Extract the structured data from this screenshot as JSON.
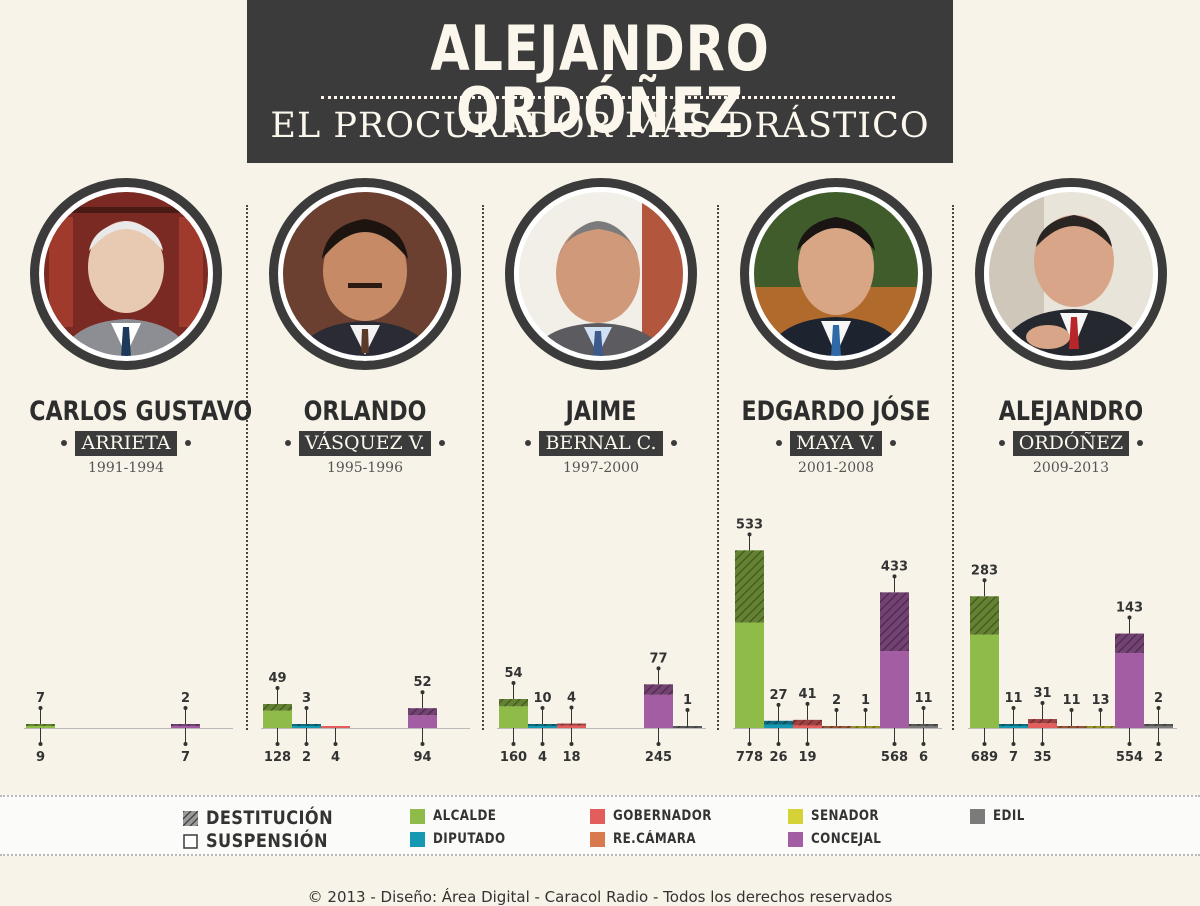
{
  "header": {
    "title": "ALEJANDRO ORDÓÑEZ",
    "subtitle": "EL PROCURADOR MÁS DRÁSTICO"
  },
  "people": [
    {
      "first": "CARLOS GUSTAVO",
      "last": "ARRIETA",
      "years": "1991-1994"
    },
    {
      "first": "ORLANDO",
      "last": "VÁSQUEZ V.",
      "years": "1995-1996"
    },
    {
      "first": "JAIME",
      "last": "BERNAL C.",
      "years": "1997-2000"
    },
    {
      "first": "EDGARDO JÓSE",
      "last": "MAYA V.",
      "years": "2001-2008"
    },
    {
      "first": "ALEJANDRO",
      "last": "ORDÓÑEZ",
      "years": "2009-2013"
    }
  ],
  "legend": {
    "destitucion": "DESTITUCIÓN",
    "suspension": "SUSPENSIÓN",
    "alcalde": "ALCALDE",
    "diputado": "DIPUTADO",
    "gobernador": "GOBERNADOR",
    "recamara": "RE.CÁMARA",
    "senador": "SENADOR",
    "concejal": "CONCEJAL",
    "edil": "EDIL"
  },
  "colors": {
    "alcalde": "#8fbb48",
    "diputado": "#1599b3",
    "gobernador": "#e45d5d",
    "recamara": "#d87a4d",
    "senador": "#d5d238",
    "concejal": "#a35ea3",
    "edil": "#7b7b7b"
  },
  "chart_data": {
    "type": "bar",
    "stacked": true,
    "categories": [
      "ALCALDE",
      "DIPUTADO",
      "GOBERNADOR",
      "RE.CÁMARA",
      "SENADOR",
      "CONCEJAL",
      "EDIL"
    ],
    "groups": [
      {
        "label": "1991-1994",
        "destitucion": [
          7,
          null,
          null,
          null,
          null,
          2,
          null
        ],
        "suspension": [
          9,
          null,
          null,
          null,
          null,
          7,
          null
        ]
      },
      {
        "label": "1995-1996",
        "destitucion": [
          49,
          3,
          null,
          null,
          null,
          52,
          null
        ],
        "suspension": [
          128,
          2,
          4,
          null,
          null,
          94,
          null
        ]
      },
      {
        "label": "1997-2000",
        "destitucion": [
          54,
          10,
          4,
          null,
          null,
          77,
          1
        ],
        "suspension": [
          160,
          4,
          18,
          null,
          null,
          245,
          null
        ]
      },
      {
        "label": "2001-2008",
        "destitucion": [
          533,
          27,
          41,
          2,
          1,
          433,
          11
        ],
        "suspension": [
          778,
          26,
          19,
          null,
          null,
          568,
          6
        ]
      },
      {
        "label": "2009-2013",
        "destitucion": [
          283,
          11,
          31,
          11,
          13,
          143,
          2
        ],
        "suspension": [
          689,
          7,
          35,
          null,
          null,
          554,
          2
        ]
      }
    ],
    "series": [
      {
        "name": "DESTITUCIÓN"
      },
      {
        "name": "SUSPENSIÓN"
      }
    ]
  },
  "footer": "© 2013 - Diseño: Área Digital - Caracol Radio - Todos los derechos reservados"
}
